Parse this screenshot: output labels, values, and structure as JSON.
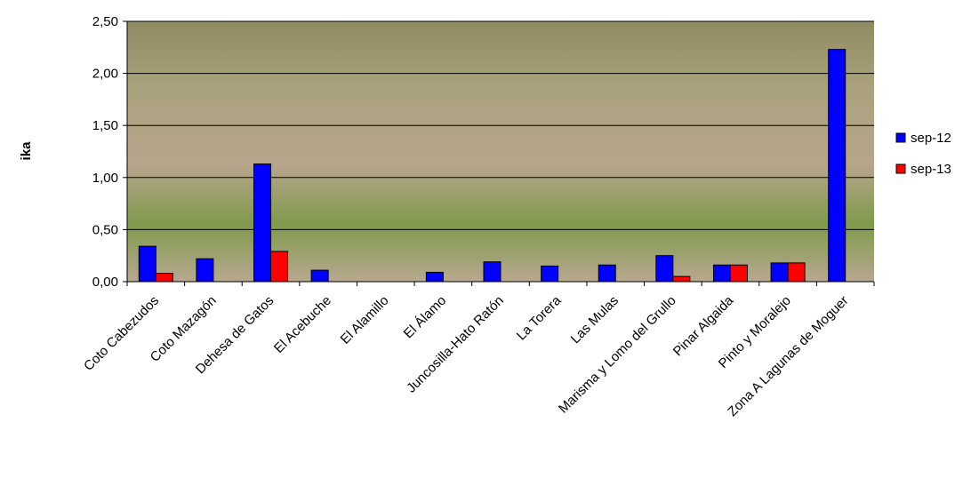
{
  "chart_data": {
    "type": "bar",
    "y_label": "ika",
    "categories": [
      "Coto Cabezudos",
      "Coto Mazagón",
      "Dehesa de Gatos",
      "El Acebuche",
      "El Alamillo",
      "El Álamo",
      "Juncosilla-Hato Ratón",
      "La Torera",
      "Las Mulas",
      "Marisma y Lomo del Grullo",
      "Pinar Algaida",
      "Pinto y Moralejo",
      "Zona A Lagunas de Moguer"
    ],
    "series": [
      {
        "name": "sep-12",
        "color": "#0000ff",
        "values": [
          0.34,
          0.22,
          1.13,
          0.11,
          null,
          0.09,
          0.19,
          0.15,
          0.16,
          0.25,
          0.16,
          0.18,
          2.23
        ]
      },
      {
        "name": "sep-13",
        "color": "#ff0000",
        "values": [
          0.08,
          null,
          0.29,
          null,
          null,
          null,
          null,
          null,
          null,
          0.05,
          0.16,
          0.18,
          null
        ]
      }
    ],
    "ylim": [
      0,
      2.5
    ],
    "yticks": [
      {
        "value": 0,
        "label": "0,00"
      },
      {
        "value": 0.5,
        "label": "0,50"
      },
      {
        "value": 1,
        "label": "1,00"
      },
      {
        "value": 1.5,
        "label": "1,50"
      },
      {
        "value": 2,
        "label": "2,00"
      },
      {
        "value": 2.5,
        "label": "2,50"
      }
    ],
    "grid": true,
    "legend": "right"
  }
}
